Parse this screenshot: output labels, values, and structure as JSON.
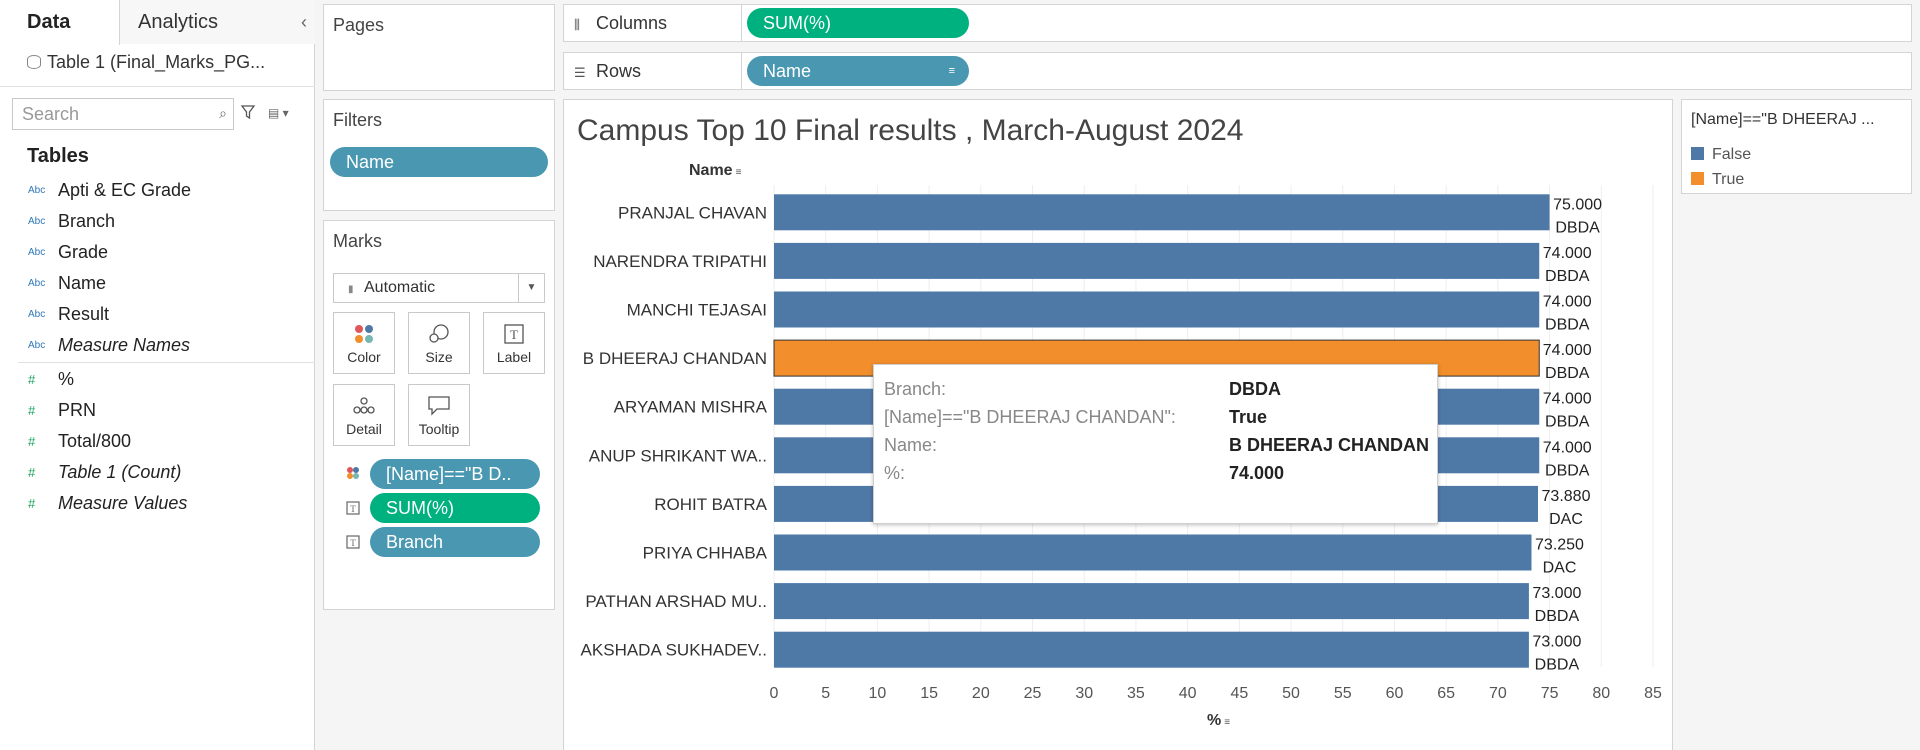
{
  "tabs": {
    "data": "Data",
    "analytics": "Analytics"
  },
  "datasource": "Table 1 (Final_Marks_PG...",
  "search_placeholder": "Search",
  "tables_heading": "Tables",
  "dimensions": [
    {
      "type": "Abc",
      "label": "Apti & EC Grade"
    },
    {
      "type": "Abc",
      "label": "Branch"
    },
    {
      "type": "Abc",
      "label": "Grade"
    },
    {
      "type": "Abc",
      "label": "Name"
    },
    {
      "type": "Abc",
      "label": "Result"
    },
    {
      "type": "Abc",
      "label": "Measure Names"
    }
  ],
  "measures": [
    {
      "type": "#",
      "label": "%"
    },
    {
      "type": "#",
      "label": "PRN"
    },
    {
      "type": "#",
      "label": "Total/800"
    },
    {
      "type": "#",
      "label": "Table 1 (Count)"
    },
    {
      "type": "#",
      "label": "Measure Values"
    }
  ],
  "pages_label": "Pages",
  "filters_label": "Filters",
  "filter_pill": "Name",
  "marks_label": "Marks",
  "mark_type": "Automatic",
  "mark_buttons": {
    "color": "Color",
    "size": "Size",
    "label": "Label",
    "detail": "Detail",
    "tooltip": "Tooltip"
  },
  "mark_pills": {
    "color_field": "[Name]==\"B D..",
    "label_field1": "SUM(%)",
    "label_field2": "Branch"
  },
  "columns_label": "Columns",
  "columns_pill": "SUM(%)",
  "rows_label": "Rows",
  "rows_pill": "Name",
  "legend": {
    "title": "[Name]==\"B DHEERAJ ...",
    "items": [
      {
        "label": "False",
        "color": "#4e79a7"
      },
      {
        "label": "True",
        "color": "#f28e2b"
      }
    ]
  },
  "tooltip": {
    "rows": [
      {
        "k": "Branch:",
        "v": "DBDA"
      },
      {
        "k": "[Name]==\"B DHEERAJ CHANDAN\":",
        "v": "True"
      },
      {
        "k": "Name:",
        "v": "B DHEERAJ CHANDAN"
      },
      {
        "k": "%:",
        "v": "74.000"
      }
    ]
  },
  "chart_data": {
    "type": "bar",
    "title": "Campus Top 10 Final results , March-August 2024",
    "row_header": "Name",
    "xlabel": "%",
    "xlim": [
      0,
      85
    ],
    "xticks": [
      0,
      5,
      10,
      15,
      20,
      25,
      30,
      35,
      40,
      45,
      50,
      55,
      60,
      65,
      70,
      75,
      80,
      85
    ],
    "categories": [
      "PRANJAL CHAVAN",
      "NARENDRA TRIPATHI",
      "MANCHI TEJASAI",
      "B DHEERAJ CHANDAN",
      "ARYAMAN MISHRA",
      "ANUP SHRIKANT WA..",
      "ROHIT BATRA",
      "PRIYA CHHABA",
      "PATHAN ARSHAD MU..",
      "AKSHADA SUKHADEV.."
    ],
    "values": [
      75.0,
      74.0,
      74.0,
      74.0,
      74.0,
      74.0,
      73.88,
      73.25,
      73.0,
      73.0
    ],
    "value_labels": [
      "75.000",
      "74.000",
      "74.000",
      "74.000",
      "74.000",
      "74.000",
      "73.880",
      "73.250",
      "73.000",
      "73.000"
    ],
    "branch": [
      "DBDA",
      "DBDA",
      "DBDA",
      "DBDA",
      "DBDA",
      "DBDA",
      "DAC",
      "DAC",
      "DBDA",
      "DBDA"
    ],
    "highlight": [
      false,
      false,
      false,
      true,
      false,
      false,
      false,
      false,
      false,
      false
    ],
    "colors": {
      "false": "#4e79a7",
      "true": "#f28e2b"
    }
  }
}
